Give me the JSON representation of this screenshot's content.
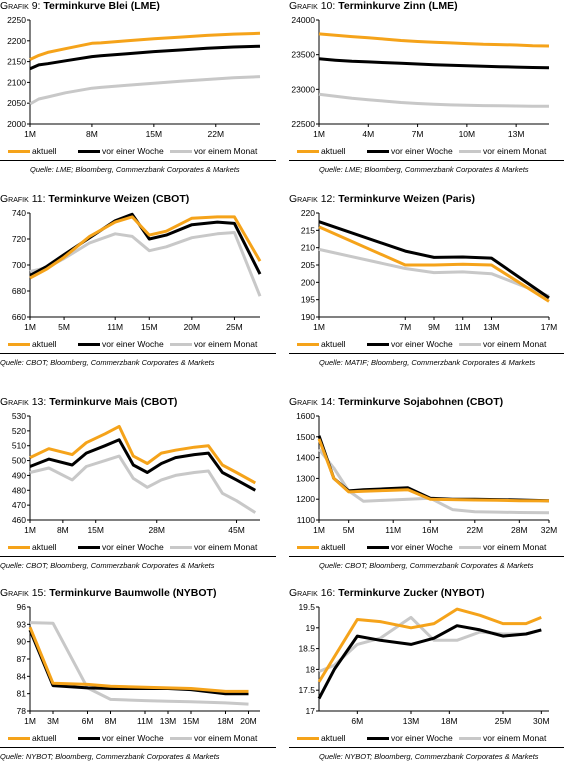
{
  "legend_labels": [
    "aktuell",
    "vor einer Woche",
    "vor einem Monat"
  ],
  "colors": {
    "aktuell": "#f5a31a",
    "woche": "#000000",
    "monat": "#c8c8c8"
  },
  "chart_data": [
    {
      "type": "line",
      "label": "Grafik 9:",
      "title": "Terminkurve Blei (LME)",
      "source": "Quelle: LME; Bloomberg, Commerzbank Corporates & Markets",
      "xticks": [
        "1M",
        "8M",
        "15M",
        "22M"
      ],
      "xtick_pos": [
        1,
        8,
        15,
        22
      ],
      "xlim": [
        1,
        27
      ],
      "ylim": [
        2000,
        2250
      ],
      "yticks": [
        2000,
        2050,
        2100,
        2150,
        2200,
        2250
      ],
      "series": [
        {
          "name": "aktuell",
          "x": [
            1,
            2,
            3,
            5,
            8,
            9,
            12,
            15,
            18,
            21,
            24,
            27
          ],
          "y": [
            2155,
            2165,
            2172,
            2181,
            2194,
            2195,
            2200,
            2205,
            2209,
            2213,
            2216,
            2218
          ]
        },
        {
          "name": "vor einer Woche",
          "x": [
            1,
            2,
            3,
            5,
            8,
            9,
            12,
            15,
            18,
            21,
            24,
            27
          ],
          "y": [
            2133,
            2142,
            2145,
            2152,
            2162,
            2164,
            2169,
            2174,
            2178,
            2182,
            2185,
            2187
          ]
        },
        {
          "name": "vor einem Monat",
          "x": [
            1,
            2,
            3,
            5,
            8,
            9,
            12,
            15,
            18,
            21,
            24,
            27
          ],
          "y": [
            2048,
            2060,
            2065,
            2075,
            2086,
            2088,
            2093,
            2098,
            2103,
            2107,
            2111,
            2114
          ]
        }
      ]
    },
    {
      "type": "line",
      "label": "Grafik 10:",
      "title": "Terminkurve Zinn (LME)",
      "source": "Quelle: LME; Bloomberg, Commerzbank Corporates & Markets",
      "xticks": [
        "1M",
        "4M",
        "7M",
        "10M",
        "13M"
      ],
      "xtick_pos": [
        1,
        4,
        7,
        10,
        13
      ],
      "xlim": [
        1,
        15
      ],
      "ylim": [
        22500,
        24000
      ],
      "yticks": [
        22500,
        23000,
        23500,
        24000
      ],
      "series": [
        {
          "name": "aktuell",
          "x": [
            1,
            2,
            3,
            4,
            5,
            6,
            7,
            8,
            9,
            10,
            11,
            12,
            13,
            14,
            15
          ],
          "y": [
            23800,
            23780,
            23760,
            23745,
            23725,
            23705,
            23690,
            23680,
            23670,
            23660,
            23650,
            23645,
            23640,
            23630,
            23625
          ]
        },
        {
          "name": "vor einer Woche",
          "x": [
            1,
            2,
            3,
            4,
            5,
            6,
            7,
            8,
            9,
            10,
            11,
            12,
            13,
            14,
            15
          ],
          "y": [
            23440,
            23420,
            23405,
            23395,
            23385,
            23375,
            23365,
            23355,
            23348,
            23340,
            23333,
            23327,
            23320,
            23315,
            23310
          ]
        },
        {
          "name": "vor einem Monat",
          "x": [
            1,
            2,
            3,
            4,
            5,
            6,
            7,
            8,
            9,
            10,
            11,
            12,
            13,
            14,
            15
          ],
          "y": [
            22930,
            22900,
            22870,
            22850,
            22830,
            22810,
            22795,
            22785,
            22775,
            22770,
            22765,
            22762,
            22760,
            22757,
            22755
          ]
        }
      ]
    },
    {
      "type": "line",
      "label": "Grafik 11:",
      "title": "Terminkurve Weizen (CBOT)",
      "source": "Quelle: CBOT; Bloomberg, Commerzbank Corporates & Markets",
      "xticks": [
        "1M",
        "5M",
        "11M",
        "15M",
        "20M",
        "25M"
      ],
      "xtick_pos": [
        1,
        5,
        11,
        15,
        20,
        25
      ],
      "xlim": [
        1,
        28
      ],
      "ylim": [
        660,
        740
      ],
      "yticks": [
        660,
        680,
        700,
        720,
        740
      ],
      "series": [
        {
          "name": "aktuell",
          "x": [
            1,
            3,
            5,
            8,
            11,
            13,
            15,
            17,
            20,
            23,
            25,
            28
          ],
          "y": [
            690,
            697,
            706,
            722,
            733,
            737,
            723,
            726,
            736,
            737,
            737,
            703
          ]
        },
        {
          "name": "vor einer Woche",
          "x": [
            1,
            3,
            5,
            8,
            11,
            13,
            15,
            17,
            20,
            23,
            25,
            28
          ],
          "y": [
            692,
            699,
            708,
            721,
            734,
            739,
            720,
            723,
            731,
            733,
            732,
            693
          ]
        },
        {
          "name": "vor einem Monat",
          "x": [
            1,
            3,
            5,
            8,
            11,
            13,
            15,
            17,
            20,
            23,
            25,
            28
          ],
          "y": [
            695,
            698,
            705,
            717,
            724,
            722,
            711,
            714,
            721,
            724,
            725,
            676
          ]
        }
      ]
    },
    {
      "type": "line",
      "label": "Grafik 12:",
      "title": "Terminkurve Weizen (Paris)",
      "source": "Quelle: MATIF; Bloomberg, Commerzbank Corporates & Markets",
      "xticks": [
        "1M",
        "7M",
        "9M",
        "11M",
        "13M",
        "17M"
      ],
      "xtick_pos": [
        1,
        7,
        9,
        11,
        13,
        17
      ],
      "xlim": [
        1,
        17
      ],
      "ylim": [
        190,
        220
      ],
      "yticks": [
        190,
        195,
        200,
        205,
        210,
        215,
        220
      ],
      "series": [
        {
          "name": "aktuell",
          "x": [
            1,
            7,
            9,
            11,
            13,
            17
          ],
          "y": [
            216,
            205,
            205,
            205.2,
            205,
            194.5
          ]
        },
        {
          "name": "vor einer Woche",
          "x": [
            1,
            7,
            9,
            11,
            13,
            17
          ],
          "y": [
            217.5,
            209,
            207.2,
            207.3,
            207,
            195.5
          ]
        },
        {
          "name": "vor einem Monat",
          "x": [
            1,
            7,
            9,
            11,
            13,
            17
          ],
          "y": [
            209.5,
            204,
            202.8,
            203,
            202.5,
            196
          ]
        }
      ]
    },
    {
      "type": "line",
      "label": "Grafik 13:",
      "title": "Terminkurve Mais (CBOT)",
      "source": "Quelle: CBOT; Bloomberg, Commerzbank Corporates & Markets",
      "xticks": [
        "1M",
        "8M",
        "15M",
        "28M",
        "45M"
      ],
      "xtick_pos": [
        1,
        8,
        15,
        28,
        45
      ],
      "xlim": [
        1,
        50
      ],
      "ylim": [
        460,
        530
      ],
      "yticks": [
        460,
        470,
        480,
        490,
        500,
        510,
        520,
        530
      ],
      "series": [
        {
          "name": "aktuell",
          "x": [
            1,
            5,
            10,
            13,
            17,
            20,
            23,
            26,
            29,
            32,
            36,
            39,
            42,
            45,
            49
          ],
          "y": [
            502,
            508,
            504,
            512,
            518,
            523,
            503,
            498,
            505,
            507,
            509,
            510,
            497,
            492,
            485
          ]
        },
        {
          "name": "vor einer Woche",
          "x": [
            1,
            5,
            10,
            13,
            17,
            20,
            23,
            26,
            29,
            32,
            36,
            39,
            42,
            45,
            49
          ],
          "y": [
            496,
            501,
            497,
            505,
            510,
            514,
            497,
            492,
            498,
            502,
            504,
            505,
            492,
            487,
            480
          ]
        },
        {
          "name": "vor einem Monat",
          "x": [
            1,
            5,
            10,
            13,
            17,
            20,
            23,
            26,
            29,
            32,
            36,
            39,
            42,
            45,
            49
          ],
          "y": [
            492,
            495,
            487,
            496,
            500,
            503,
            488,
            482,
            487,
            490,
            492,
            493,
            478,
            473,
            465
          ]
        }
      ]
    },
    {
      "type": "line",
      "label": "Grafik 14:",
      "title": "Terminkurve Sojabohnen (CBOT)",
      "source": "Quelle: CBOT; Bloomberg, Commerzbank Corporates & Markets",
      "xticks": [
        "1M",
        "5M",
        "11M",
        "16M",
        "22M",
        "28M",
        "32M"
      ],
      "xtick_pos": [
        1,
        5,
        11,
        16,
        22,
        28,
        32
      ],
      "xlim": [
        1,
        32
      ],
      "ylim": [
        1100,
        1600
      ],
      "yticks": [
        1100,
        1200,
        1300,
        1400,
        1500,
        1600
      ],
      "series": [
        {
          "name": "aktuell",
          "x": [
            1,
            3,
            5,
            7,
            10,
            13,
            16,
            19,
            22,
            25,
            28,
            32
          ],
          "y": [
            1490,
            1300,
            1235,
            1238,
            1242,
            1245,
            1200,
            1198,
            1196,
            1195,
            1193,
            1192
          ]
        },
        {
          "name": "vor einer Woche",
          "x": [
            1,
            3,
            5,
            7,
            10,
            13,
            16,
            19,
            22,
            25,
            28,
            32
          ],
          "y": [
            1505,
            1300,
            1240,
            1245,
            1250,
            1255,
            1205,
            1200,
            1200,
            1198,
            1196,
            1193
          ]
        },
        {
          "name": "vor einem Monat",
          "x": [
            1,
            3,
            5,
            7,
            10,
            13,
            16,
            19,
            22,
            25,
            28,
            32
          ],
          "y": [
            1440,
            1350,
            1240,
            1190,
            1195,
            1200,
            1205,
            1150,
            1140,
            1138,
            1136,
            1135
          ]
        }
      ]
    },
    {
      "type": "line",
      "label": "Grafik 15:",
      "title": "Terminkurve Baumwolle (NYBOT)",
      "source": "Quelle: NYBOT; Bloomberg, Commerzbank Corporates & Markets",
      "xticks": [
        "1M",
        "3M",
        "6M",
        "8M",
        "11M",
        "13M",
        "15M",
        "18M",
        "20M"
      ],
      "xtick_pos": [
        1,
        3,
        6,
        8,
        11,
        13,
        15,
        18,
        20
      ],
      "xlim": [
        1,
        21
      ],
      "ylim": [
        78,
        96
      ],
      "yticks": [
        78,
        81,
        84,
        87,
        90,
        93,
        96
      ],
      "series": [
        {
          "name": "aktuell",
          "x": [
            1,
            3,
            6,
            8,
            11,
            13,
            15,
            18,
            20
          ],
          "y": [
            92.5,
            82.8,
            82.6,
            82.3,
            82.1,
            82.0,
            81.9,
            81.4,
            81.4
          ]
        },
        {
          "name": "vor einer Woche",
          "x": [
            1,
            3,
            6,
            8,
            11,
            13,
            15,
            18,
            20
          ],
          "y": [
            92.0,
            82.4,
            82.0,
            81.9,
            81.9,
            81.9,
            81.7,
            81.0,
            81.0
          ]
        },
        {
          "name": "vor einem Monat",
          "x": [
            1,
            3,
            6,
            8,
            11,
            13,
            15,
            18,
            20
          ],
          "y": [
            93.3,
            93.2,
            82.0,
            80.0,
            79.8,
            79.7,
            79.6,
            79.4,
            79.2
          ]
        }
      ]
    },
    {
      "type": "line",
      "label": "Grafik 16:",
      "title": "Terminkurve Zucker (NYBOT)",
      "source": "Quelle: NYBOT; Bloomberg, Commerzbank Corporates & Markets",
      "xticks": [
        "6M",
        "13M",
        "18M",
        "25M",
        "30M"
      ],
      "xtick_pos": [
        6,
        13,
        18,
        25,
        30
      ],
      "xlim": [
        1,
        31
      ],
      "ylim": [
        17.0,
        19.5
      ],
      "yticks": [
        17.0,
        17.5,
        18.0,
        18.5,
        19.0,
        19.5
      ],
      "series": [
        {
          "name": "aktuell",
          "x": [
            1,
            3,
            6,
            9,
            13,
            16,
            19,
            22,
            25,
            28,
            30
          ],
          "y": [
            17.7,
            18.3,
            19.2,
            19.15,
            19.0,
            19.1,
            19.45,
            19.3,
            19.1,
            19.1,
            19.25
          ]
        },
        {
          "name": "vor einer Woche",
          "x": [
            1,
            3,
            6,
            9,
            13,
            16,
            19,
            22,
            25,
            28,
            30
          ],
          "y": [
            17.3,
            18.0,
            18.8,
            18.7,
            18.6,
            18.75,
            19.05,
            18.95,
            18.8,
            18.85,
            18.95
          ]
        },
        {
          "name": "vor einem Monat",
          "x": [
            1,
            3,
            6,
            9,
            13,
            16,
            19,
            22,
            25,
            28,
            30
          ],
          "y": [
            17.95,
            18.1,
            18.6,
            18.75,
            19.25,
            18.7,
            18.7,
            18.9,
            18.85,
            18.85,
            18.95
          ]
        }
      ]
    }
  ]
}
